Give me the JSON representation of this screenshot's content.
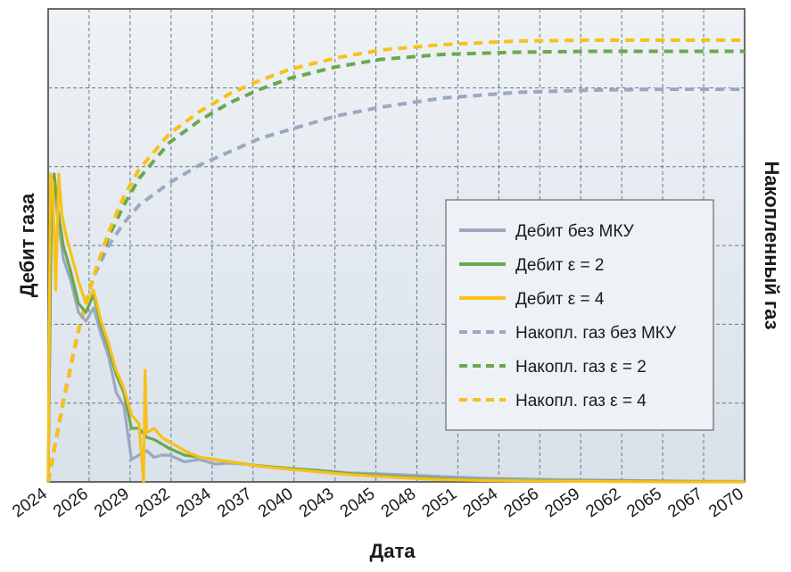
{
  "chart_data": {
    "type": "line",
    "title": "",
    "xlabel": "Дата",
    "ylabel_left": "Дебит газа",
    "ylabel_right": "Накопленный газ",
    "x_ticks": [
      "2024",
      "2026",
      "2029",
      "2032",
      "2034",
      "2037",
      "2040",
      "2043",
      "2045",
      "2048",
      "2051",
      "2054",
      "2056",
      "2059",
      "2062",
      "2065",
      "2067",
      "2070"
    ],
    "xlim": [
      2024,
      2070
    ],
    "ylim_left": [
      0,
      1
    ],
    "ylim_right": [
      0,
      1
    ],
    "grid": true,
    "legend_position": "right",
    "series": [
      {
        "name": "Дебит без МКУ",
        "axis": "left",
        "style": "solid",
        "color": "#9aa8c2",
        "x": [
          2024,
          2024.2,
          2024.4,
          2024.6,
          2025,
          2025.5,
          2026,
          2026.5,
          2027,
          2027.5,
          2028,
          2028.5,
          2029,
          2029.5,
          2030,
          2030.5,
          2031,
          2031.5,
          2032,
          2033,
          2034,
          2035,
          2036,
          2037,
          2038,
          2040,
          2042,
          2044,
          2046,
          2048,
          2050,
          2053,
          2056,
          2060,
          2065,
          2070
        ],
        "values": [
          0,
          0.55,
          0.69,
          0.6,
          0.5,
          0.45,
          0.38,
          0.36,
          0.39,
          0.33,
          0.28,
          0.2,
          0.17,
          0.05,
          0.06,
          0.07,
          0.055,
          0.06,
          0.06,
          0.045,
          0.05,
          0.04,
          0.042,
          0.04,
          0.035,
          0.03,
          0.025,
          0.02,
          0.018,
          0.015,
          0.012,
          0.008,
          0.006,
          0.004,
          0.002,
          0.001
        ]
      },
      {
        "name": "Дебит ε = 2",
        "axis": "left",
        "style": "solid",
        "color": "#6aa84f",
        "x": [
          2024,
          2024.2,
          2024.4,
          2024.6,
          2025,
          2025.5,
          2026,
          2026.5,
          2027,
          2027.5,
          2028,
          2028.5,
          2029,
          2029.5,
          2030,
          2030.5,
          2031,
          2031.5,
          2032,
          2033,
          2034,
          2035,
          2036,
          2037,
          2038,
          2040,
          2042,
          2044,
          2046,
          2048,
          2050,
          2053,
          2056,
          2060,
          2065,
          2070
        ],
        "values": [
          0,
          0.6,
          0.69,
          0.62,
          0.53,
          0.47,
          0.4,
          0.38,
          0.42,
          0.35,
          0.3,
          0.24,
          0.2,
          0.12,
          0.12,
          0.1,
          0.095,
          0.085,
          0.075,
          0.06,
          0.055,
          0.05,
          0.045,
          0.04,
          0.036,
          0.03,
          0.025,
          0.018,
          0.014,
          0.01,
          0.007,
          0.004,
          0.003,
          0.002,
          0.001,
          0
        ]
      },
      {
        "name": "Дебит ε = 4",
        "axis": "left",
        "style": "solid",
        "color": "#f8c019",
        "x": [
          2024,
          2024.15,
          2024.3,
          2024.5,
          2024.7,
          2024.9,
          2025.2,
          2025.6,
          2026,
          2026.5,
          2027,
          2027.5,
          2028,
          2028.5,
          2029,
          2029.5,
          2030,
          2030.3,
          2030.4,
          2030.5,
          2031,
          2031.5,
          2032,
          2033,
          2034,
          2035,
          2036,
          2037,
          2038,
          2040,
          2042,
          2044,
          2046,
          2048,
          2050,
          2053,
          2056,
          2060,
          2065,
          2070
        ],
        "values": [
          0,
          0.69,
          0.67,
          0.43,
          0.69,
          0.6,
          0.55,
          0.5,
          0.45,
          0.4,
          0.43,
          0.36,
          0.31,
          0.25,
          0.21,
          0.15,
          0.13,
          0.0,
          0.25,
          0.11,
          0.12,
          0.1,
          0.09,
          0.07,
          0.055,
          0.05,
          0.045,
          0.04,
          0.035,
          0.028,
          0.022,
          0.016,
          0.012,
          0.008,
          0.005,
          0.003,
          0.002,
          0.001,
          0,
          0
        ]
      },
      {
        "name": "Накопл. газ без МКУ",
        "axis": "right",
        "style": "dashed",
        "color": "#9aa8c2",
        "x": [
          2024,
          2025,
          2026,
          2027,
          2028,
          2029,
          2030,
          2032,
          2034,
          2036,
          2038,
          2040,
          2043,
          2046,
          2050,
          2055,
          2060,
          2065,
          2070
        ],
        "values": [
          0,
          0.18,
          0.34,
          0.46,
          0.53,
          0.58,
          0.62,
          0.67,
          0.71,
          0.74,
          0.77,
          0.79,
          0.82,
          0.84,
          0.86,
          0.873,
          0.878,
          0.88,
          0.88
        ]
      },
      {
        "name": "Накопл. газ ε = 2",
        "axis": "right",
        "style": "dashed",
        "color": "#6aa84f",
        "x": [
          2024,
          2025,
          2026,
          2027,
          2028,
          2029,
          2030,
          2032,
          2034,
          2036,
          2038,
          2040,
          2043,
          2046,
          2050,
          2055,
          2060,
          2065,
          2070
        ],
        "values": [
          0,
          0.18,
          0.34,
          0.46,
          0.55,
          0.62,
          0.68,
          0.76,
          0.81,
          0.85,
          0.88,
          0.905,
          0.93,
          0.947,
          0.958,
          0.963,
          0.965,
          0.965,
          0.965
        ]
      },
      {
        "name": "Накопл. газ ε = 4",
        "axis": "right",
        "style": "dashed",
        "color": "#f8c019",
        "x": [
          2024,
          2025,
          2026,
          2027,
          2028,
          2029,
          2030,
          2032,
          2034,
          2036,
          2038,
          2040,
          2043,
          2046,
          2050,
          2055,
          2060,
          2065,
          2070
        ],
        "values": [
          0,
          0.18,
          0.34,
          0.46,
          0.56,
          0.64,
          0.7,
          0.78,
          0.83,
          0.87,
          0.9,
          0.925,
          0.95,
          0.968,
          0.98,
          0.988,
          0.99,
          0.99,
          0.99
        ]
      }
    ]
  }
}
